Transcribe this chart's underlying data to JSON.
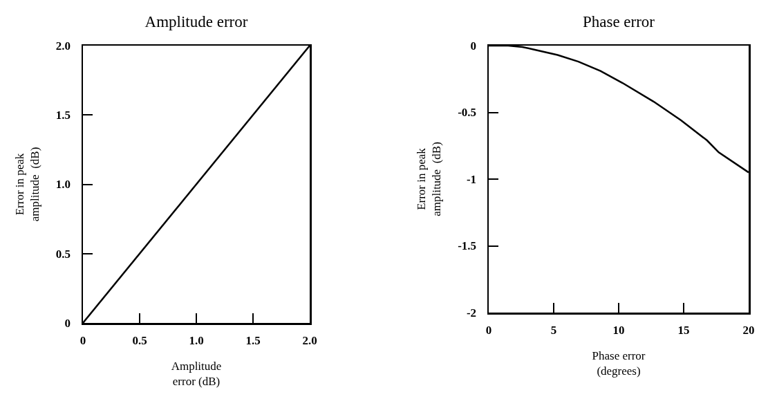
{
  "chart_data": [
    {
      "type": "line",
      "title": "Amplitude error",
      "xlabel": "Amplitude\nerror (dB)",
      "ylabel": "Error in peak\namplitude  (dB)",
      "color": "#000000",
      "x": [
        0,
        2
      ],
      "values": [
        0,
        2
      ],
      "xlim": [
        0,
        2
      ],
      "ylim": [
        0,
        2
      ],
      "xticks": [
        0,
        0.5,
        {
          "value": 1,
          "label": "1.0"
        },
        1.5,
        {
          "value": 2,
          "label": "2.0"
        }
      ],
      "yticks": [
        0,
        0.5,
        {
          "value": 1,
          "label": "1.0"
        },
        1.5,
        {
          "value": 2,
          "label": "2.0"
        }
      ]
    },
    {
      "type": "line",
      "title": "Phase error",
      "xlabel": "Phase error\n(degrees)",
      "ylabel": "Error in peak\namplitude  (dB)",
      "color": "#000000",
      "x": [
        0,
        1.5,
        2.6,
        3.5,
        5.3,
        6.9,
        8.6,
        10.3,
        12.7,
        14.8,
        16.8,
        17.7,
        20
      ],
      "values": [
        0,
        0,
        -0.01,
        -0.03,
        -0.07,
        -0.12,
        -0.19,
        -0.28,
        -0.42,
        -0.56,
        -0.71,
        -0.8,
        -0.95
      ],
      "xlim": [
        0,
        20
      ],
      "ylim": [
        -2,
        0
      ],
      "xticks": [
        0,
        5,
        10,
        15,
        20
      ],
      "yticks": [
        -2,
        -1.5,
        -1,
        -0.5,
        0
      ]
    }
  ]
}
